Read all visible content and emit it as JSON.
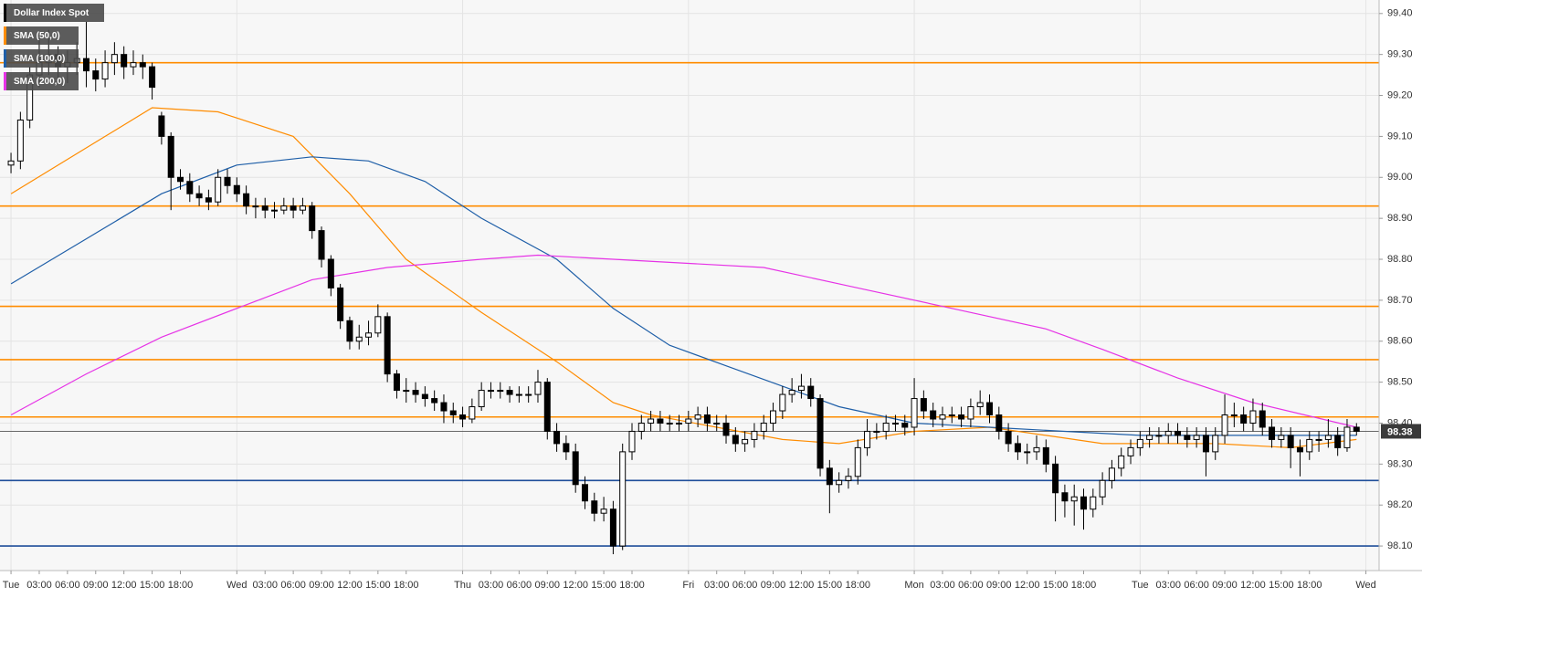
{
  "chart_data": {
    "type": "candlestick",
    "name": "Dollar Index Spot",
    "color": "#000000",
    "open": [
      99.03,
      99.04,
      99.14,
      99.25,
      99.28,
      99.3,
      99.27,
      99.28,
      99.29,
      99.26,
      99.24,
      99.28,
      99.3,
      99.27,
      99.28,
      99.27,
      99.15,
      99.1,
      99.0,
      98.99,
      98.96,
      98.95,
      98.94,
      99.0,
      98.98,
      98.96,
      98.93,
      98.93,
      98.92,
      98.92,
      98.93,
      98.92,
      98.93,
      98.87,
      98.8,
      98.73,
      98.65,
      98.6,
      98.61,
      98.62,
      98.66,
      98.52,
      98.48,
      98.48,
      98.47,
      98.46,
      98.45,
      98.43,
      98.42,
      98.41,
      98.44,
      98.48,
      98.48,
      98.48,
      98.47,
      98.47,
      98.47,
      98.5,
      98.38,
      98.35,
      98.33,
      98.25,
      98.21,
      98.18,
      98.19,
      98.1,
      98.33,
      98.38,
      98.4,
      98.41,
      98.4,
      98.4,
      98.4,
      98.41,
      98.42,
      98.4,
      98.4,
      98.37,
      98.35,
      98.36,
      98.38,
      98.4,
      98.43,
      98.47,
      98.48,
      98.49,
      98.46,
      98.29,
      98.25,
      98.26,
      98.27,
      98.34,
      98.38,
      98.38,
      98.4,
      98.4,
      98.39,
      98.46,
      98.43,
      98.41,
      98.42,
      98.42,
      98.41,
      98.44,
      98.45,
      98.42,
      98.38,
      98.35,
      98.33,
      98.33,
      98.34,
      98.3,
      98.23,
      98.21,
      98.22,
      98.19,
      98.22,
      98.26,
      98.29,
      98.32,
      98.34,
      98.36,
      98.37,
      98.37,
      98.38,
      98.37,
      98.36,
      98.37,
      98.33,
      98.37,
      98.42,
      98.42,
      98.4,
      98.43,
      98.39,
      98.36,
      98.37,
      98.34,
      98.33,
      98.36,
      98.36,
      98.37,
      98.34,
      98.39
    ],
    "high": [
      99.06,
      99.16,
      99.27,
      99.34,
      99.36,
      99.32,
      99.31,
      99.33,
      99.38,
      99.29,
      99.31,
      99.33,
      99.32,
      99.31,
      99.3,
      99.28,
      99.16,
      99.11,
      99.02,
      99.01,
      98.98,
      98.97,
      99.02,
      99.02,
      99.0,
      98.98,
      98.95,
      98.95,
      98.94,
      98.95,
      98.95,
      98.95,
      98.94,
      98.88,
      98.81,
      98.74,
      98.66,
      98.64,
      98.65,
      98.69,
      98.67,
      98.53,
      98.51,
      98.5,
      98.49,
      98.48,
      98.47,
      98.45,
      98.44,
      98.46,
      98.5,
      98.5,
      98.5,
      98.49,
      98.49,
      98.49,
      98.53,
      98.51,
      98.4,
      98.37,
      98.35,
      98.27,
      98.23,
      98.22,
      98.21,
      98.35,
      98.4,
      98.42,
      98.43,
      98.43,
      98.42,
      98.42,
      98.43,
      98.44,
      98.44,
      98.42,
      98.42,
      98.39,
      98.38,
      98.4,
      98.42,
      98.45,
      98.49,
      98.51,
      98.52,
      98.51,
      98.47,
      98.31,
      98.28,
      98.29,
      98.36,
      98.41,
      98.4,
      98.42,
      98.42,
      98.42,
      98.51,
      98.48,
      98.45,
      98.44,
      98.44,
      98.44,
      98.46,
      98.48,
      98.47,
      98.44,
      98.4,
      98.37,
      98.35,
      98.37,
      98.36,
      98.32,
      98.25,
      98.25,
      98.24,
      98.24,
      98.28,
      98.31,
      98.34,
      98.36,
      98.38,
      98.39,
      98.39,
      98.4,
      98.4,
      98.39,
      98.39,
      98.39,
      98.39,
      98.47,
      98.45,
      98.44,
      98.46,
      98.45,
      98.41,
      98.39,
      98.39,
      98.36,
      98.38,
      98.38,
      98.41,
      98.39,
      98.41,
      98.4
    ],
    "low": [
      99.01,
      99.02,
      99.12,
      99.22,
      99.25,
      99.24,
      99.23,
      99.25,
      99.22,
      99.21,
      99.22,
      99.25,
      99.24,
      99.25,
      99.24,
      99.19,
      99.08,
      98.92,
      98.97,
      98.94,
      98.93,
      98.92,
      98.93,
      98.96,
      98.94,
      98.91,
      98.9,
      98.9,
      98.9,
      98.91,
      98.9,
      98.91,
      98.85,
      98.78,
      98.71,
      98.63,
      98.58,
      98.58,
      98.59,
      98.61,
      98.5,
      98.46,
      98.45,
      98.45,
      98.44,
      98.43,
      98.4,
      98.4,
      98.39,
      98.4,
      98.43,
      98.46,
      98.46,
      98.45,
      98.45,
      98.45,
      98.45,
      98.36,
      98.33,
      98.31,
      98.23,
      98.19,
      98.16,
      98.16,
      98.08,
      98.09,
      98.31,
      98.36,
      98.38,
      98.38,
      98.38,
      98.38,
      98.38,
      98.39,
      98.38,
      98.38,
      98.35,
      98.33,
      98.33,
      98.34,
      98.36,
      98.38,
      98.41,
      98.45,
      98.46,
      98.44,
      98.27,
      98.18,
      98.23,
      98.24,
      98.25,
      98.32,
      98.36,
      98.36,
      98.38,
      98.37,
      98.37,
      98.41,
      98.39,
      98.39,
      98.4,
      98.39,
      98.39,
      98.42,
      98.4,
      98.36,
      98.33,
      98.31,
      98.3,
      98.31,
      98.28,
      98.16,
      98.17,
      98.15,
      98.14,
      98.17,
      98.2,
      98.24,
      98.27,
      98.3,
      98.32,
      98.34,
      98.35,
      98.35,
      98.35,
      98.34,
      98.34,
      98.27,
      98.31,
      98.35,
      98.39,
      98.38,
      98.38,
      98.37,
      98.34,
      98.34,
      98.29,
      98.27,
      98.31,
      98.33,
      98.34,
      98.32,
      98.33,
      98.37
    ],
    "close": [
      99.04,
      99.14,
      99.25,
      99.28,
      99.3,
      99.27,
      99.28,
      99.29,
      99.26,
      99.24,
      99.28,
      99.3,
      99.27,
      99.28,
      99.27,
      99.22,
      99.1,
      99.0,
      98.99,
      98.96,
      98.95,
      98.94,
      99.0,
      98.98,
      98.96,
      98.93,
      98.93,
      98.92,
      98.92,
      98.93,
      98.92,
      98.93,
      98.87,
      98.8,
      98.73,
      98.65,
      98.6,
      98.61,
      98.62,
      98.66,
      98.52,
      98.48,
      98.48,
      98.47,
      98.46,
      98.45,
      98.43,
      98.42,
      98.41,
      98.44,
      98.48,
      98.48,
      98.48,
      98.47,
      98.47,
      98.47,
      98.5,
      98.38,
      98.35,
      98.33,
      98.25,
      98.21,
      98.18,
      98.19,
      98.1,
      98.33,
      98.38,
      98.4,
      98.41,
      98.4,
      98.4,
      98.4,
      98.41,
      98.42,
      98.4,
      98.4,
      98.37,
      98.35,
      98.36,
      98.38,
      98.4,
      98.43,
      98.47,
      98.48,
      98.49,
      98.46,
      98.29,
      98.25,
      98.26,
      98.27,
      98.34,
      98.38,
      98.38,
      98.4,
      98.4,
      98.39,
      98.46,
      98.43,
      98.41,
      98.42,
      98.42,
      98.41,
      98.44,
      98.45,
      98.42,
      98.38,
      98.35,
      98.33,
      98.33,
      98.34,
      98.3,
      98.23,
      98.21,
      98.22,
      98.19,
      98.22,
      98.26,
      98.29,
      98.32,
      98.34,
      98.36,
      98.37,
      98.37,
      98.38,
      98.37,
      98.36,
      98.37,
      98.33,
      98.37,
      98.42,
      98.42,
      98.4,
      98.43,
      98.39,
      98.36,
      98.37,
      98.34,
      98.33,
      98.36,
      98.36,
      98.37,
      98.34,
      98.39,
      98.38
    ],
    "series": [
      {
        "name": "SMA (50,0)",
        "color": "#ff8c00",
        "x": [
          0,
          10,
          15,
          22,
          30,
          36,
          42,
          50,
          58,
          64,
          68,
          75,
          82,
          88,
          96,
          104,
          110,
          116,
          122,
          128,
          136,
          143
        ],
        "values": [
          98.96,
          99.1,
          99.17,
          99.16,
          99.1,
          98.96,
          98.8,
          98.67,
          98.55,
          98.45,
          98.42,
          98.39,
          98.36,
          98.35,
          98.38,
          98.39,
          98.37,
          98.35,
          98.35,
          98.35,
          98.34,
          98.36
        ]
      },
      {
        "name": "SMA (100,0)",
        "color": "#1f5fa8",
        "x": [
          0,
          8,
          16,
          24,
          32,
          38,
          44,
          50,
          58,
          64,
          70,
          76,
          82,
          88,
          96,
          104,
          112,
          120,
          128,
          136,
          143
        ],
        "values": [
          98.74,
          98.85,
          98.96,
          99.03,
          99.05,
          99.04,
          98.99,
          98.9,
          98.8,
          98.68,
          98.59,
          98.54,
          98.49,
          98.44,
          98.4,
          98.39,
          98.38,
          98.37,
          98.37,
          98.37,
          98.37
        ]
      },
      {
        "name": "SMA (200,0)",
        "color": "#e633e6",
        "x": [
          0,
          8,
          16,
          24,
          32,
          40,
          50,
          56,
          64,
          72,
          80,
          90,
          100,
          110,
          116,
          124,
          132,
          143
        ],
        "values": [
          98.42,
          98.52,
          98.61,
          98.68,
          98.75,
          98.78,
          98.8,
          98.81,
          98.8,
          98.79,
          98.78,
          98.73,
          98.68,
          98.63,
          98.58,
          98.51,
          98.45,
          98.39
        ]
      }
    ],
    "levels": [
      {
        "value": 99.28,
        "color": "#ff8c00"
      },
      {
        "value": 98.93,
        "color": "#ff8c00"
      },
      {
        "value": 98.685,
        "color": "#ff8c00"
      },
      {
        "value": 98.555,
        "color": "#ff8c00"
      },
      {
        "value": 98.415,
        "color": "#ff8c00"
      },
      {
        "value": 98.26,
        "color": "#1f4e9a"
      },
      {
        "value": 98.1,
        "color": "#1f4e9a"
      }
    ],
    "last_price": 98.38,
    "xlim": [
      -1.17,
      145.4
    ],
    "xticks": [
      {
        "value": 0,
        "label": "Tue"
      },
      {
        "value": 3,
        "label": "03:00"
      },
      {
        "value": 6,
        "label": "06:00"
      },
      {
        "value": 9,
        "label": "09:00"
      },
      {
        "value": 12,
        "label": "12:00"
      },
      {
        "value": 15,
        "label": "15:00"
      },
      {
        "value": 18,
        "label": "18:00"
      },
      {
        "value": 24,
        "label": "Wed"
      },
      {
        "value": 27,
        "label": "03:00"
      },
      {
        "value": 30,
        "label": "06:00"
      },
      {
        "value": 33,
        "label": "09:00"
      },
      {
        "value": 36,
        "label": "12:00"
      },
      {
        "value": 39,
        "label": "15:00"
      },
      {
        "value": 42,
        "label": "18:00"
      },
      {
        "value": 48,
        "label": "Thu"
      },
      {
        "value": 51,
        "label": "03:00"
      },
      {
        "value": 54,
        "label": "06:00"
      },
      {
        "value": 57,
        "label": "09:00"
      },
      {
        "value": 60,
        "label": "12:00"
      },
      {
        "value": 63,
        "label": "15:00"
      },
      {
        "value": 66,
        "label": "18:00"
      },
      {
        "value": 72,
        "label": "Fri"
      },
      {
        "value": 75,
        "label": "03:00"
      },
      {
        "value": 78,
        "label": "06:00"
      },
      {
        "value": 81,
        "label": "09:00"
      },
      {
        "value": 84,
        "label": "12:00"
      },
      {
        "value": 87,
        "label": "15:00"
      },
      {
        "value": 90,
        "label": "18:00"
      },
      {
        "value": 96,
        "label": "Mon"
      },
      {
        "value": 99,
        "label": "03:00"
      },
      {
        "value": 102,
        "label": "06:00"
      },
      {
        "value": 105,
        "label": "09:00"
      },
      {
        "value": 108,
        "label": "12:00"
      },
      {
        "value": 111,
        "label": "15:00"
      },
      {
        "value": 114,
        "label": "18:00"
      },
      {
        "value": 120,
        "label": "Tue"
      },
      {
        "value": 123,
        "label": "03:00"
      },
      {
        "value": 126,
        "label": "06:00"
      },
      {
        "value": 129,
        "label": "09:00"
      },
      {
        "value": 132,
        "label": "12:00"
      },
      {
        "value": 135,
        "label": "15:00"
      },
      {
        "value": 138,
        "label": "18:00"
      },
      {
        "value": 144,
        "label": "Wed"
      }
    ],
    "ylim": [
      98.04,
      99.433
    ],
    "yticks": [
      {
        "value": 98.1,
        "label": "98.10"
      },
      {
        "value": 98.2,
        "label": "98.20"
      },
      {
        "value": 98.3,
        "label": "98.30"
      },
      {
        "value": 98.4,
        "label": "98.40"
      },
      {
        "value": 98.5,
        "label": "98.50"
      },
      {
        "value": 98.6,
        "label": "98.60"
      },
      {
        "value": 98.7,
        "label": "98.70"
      },
      {
        "value": 98.8,
        "label": "98.80"
      },
      {
        "value": 98.9,
        "label": "98.90"
      },
      {
        "value": 99.0,
        "label": "99.00"
      },
      {
        "value": 99.1,
        "label": "99.10"
      },
      {
        "value": 99.2,
        "label": "99.20"
      },
      {
        "value": 99.3,
        "label": "99.30"
      },
      {
        "value": 99.4,
        "label": "99.40"
      }
    ],
    "grid": true
  }
}
